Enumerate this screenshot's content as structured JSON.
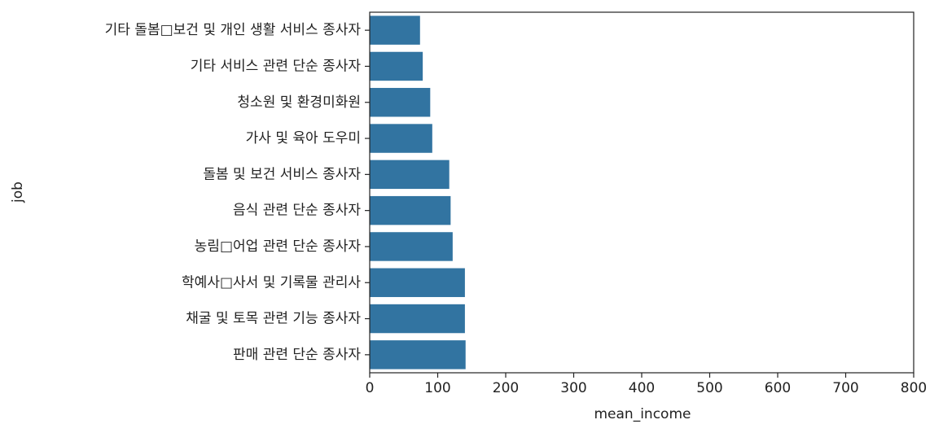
{
  "chart_data": {
    "type": "bar",
    "orientation": "horizontal",
    "x_label": "mean_income",
    "y_label": "job",
    "categories": [
      "기타 돌봄□보건 및 개인 생활 서비스 종사자",
      "기타 서비스 관련 단순 종사자",
      "청소원 및 환경미화원",
      "가사 및 육아 도우미",
      "돌봄 및 보건 서비스 종사자",
      "음식 관련 단순 종사자",
      "농림□어업 관련 단순 종사자",
      "학예사□사서 및 기록물 관리사",
      "채굴 및 토목 관련 기능 종사자",
      "판매 관련 단순 종사자"
    ],
    "values": [
      74,
      78,
      89,
      92,
      117,
      119,
      122,
      140,
      140,
      141
    ],
    "color": "#3274a1",
    "xlim": [
      0,
      800
    ],
    "xticks": [
      0,
      100,
      200,
      300,
      400,
      500,
      600,
      700,
      800
    ]
  }
}
